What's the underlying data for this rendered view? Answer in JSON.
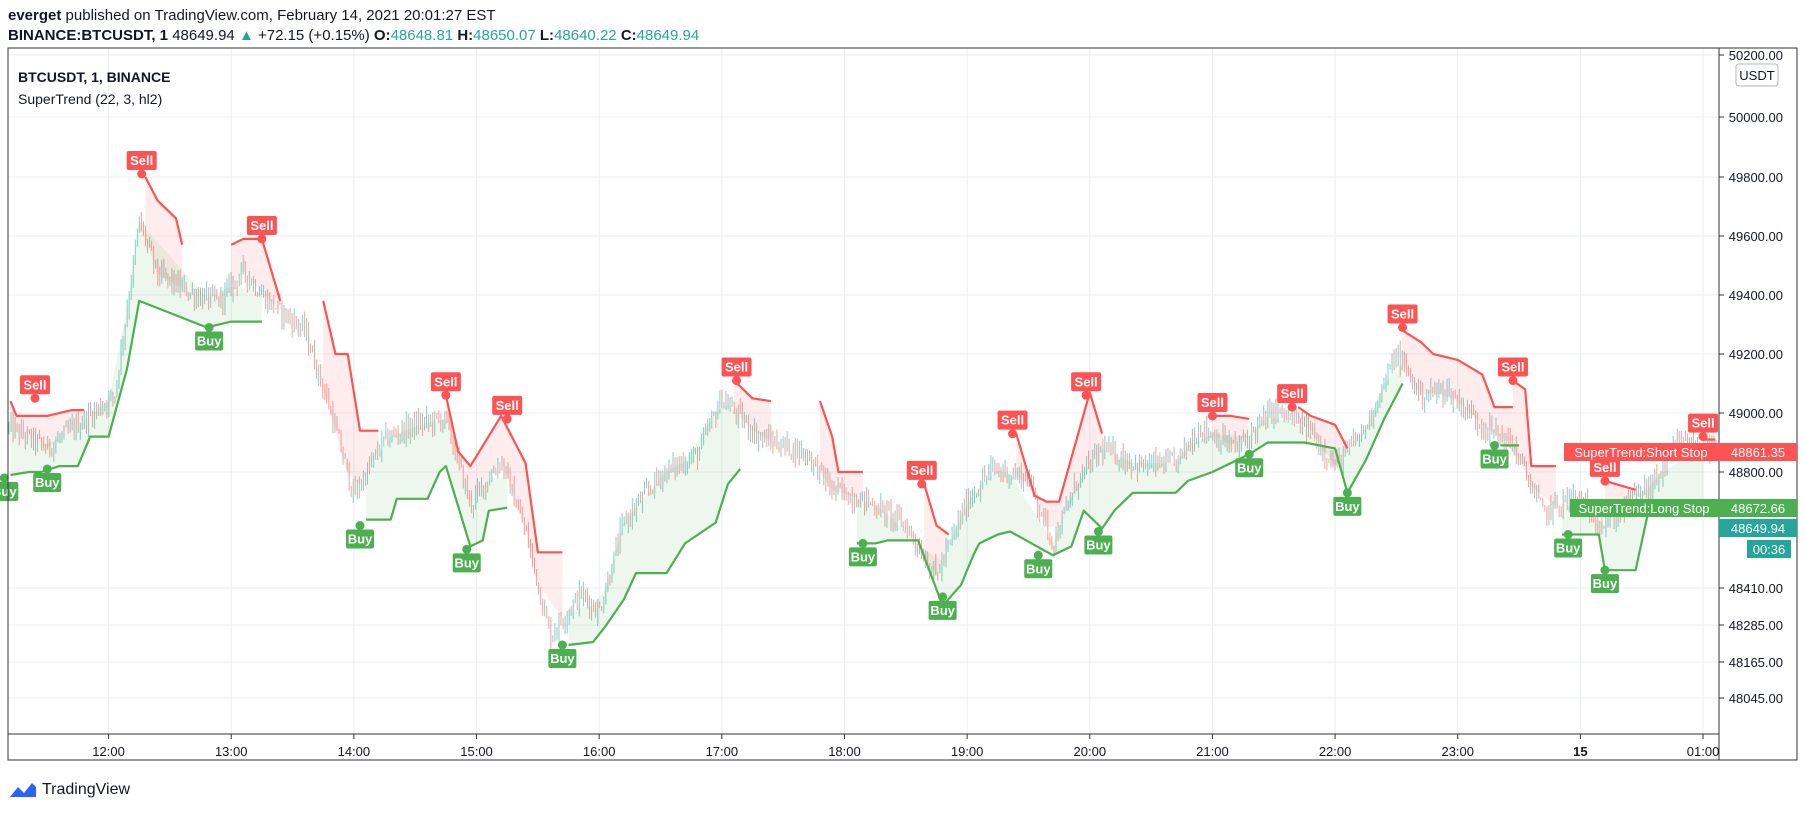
{
  "header": {
    "user": "everget",
    "published_text": "published on TradingView.com, February 14, 2021 20:01:27 EST",
    "symbol": "BINANCE:BTCUSDT, 1",
    "last": "48649.94",
    "change_arrow": "▲",
    "change": "+72.15 (+0.15%)",
    "o_label": "O:",
    "o": "48648.81",
    "h_label": "H:",
    "h": "48650.07",
    "l_label": "L:",
    "l": "48640.22",
    "c_label": "C:",
    "c": "48649.94"
  },
  "pane": {
    "title": "BTCUSDT, 1, BINANCE",
    "indicator": "SuperTrend (22, 3, hl2)",
    "currency_badge": "USDT"
  },
  "price_badges": {
    "short_stop_label": "SuperTrend:Short Stop",
    "short_stop_value": "48861.35",
    "long_stop_label": "SuperTrend:Long Stop",
    "long_stop_value": "48672.66",
    "last_value": "48649.94",
    "countdown": "00:36"
  },
  "footer": {
    "brand": "TradingView"
  },
  "colors": {
    "up": "#26a69a",
    "down": "#ef5350",
    "long_stop": "#4caf50",
    "short_stop": "#ff5252",
    "long_fill": "rgba(76,175,80,0.10)",
    "short_fill": "rgba(255,82,82,0.10)",
    "grid": "#e9eef3",
    "last_price": "#26a69a"
  },
  "chart_data": {
    "type": "line",
    "title": "BTCUSDT, 1, BINANCE",
    "x_ticks": [
      "12:00",
      "13:00",
      "14:00",
      "15:00",
      "16:00",
      "17:00",
      "18:00",
      "19:00",
      "20:00",
      "21:00",
      "22:00",
      "23:00",
      "15",
      "01:00"
    ],
    "y_ticks": [
      "50200.00",
      "50000.00",
      "49800.00",
      "49600.00",
      "49400.00",
      "49200.00",
      "49000.00",
      "48800.00",
      "48410.00",
      "48285.00",
      "48165.00",
      "48045.00"
    ],
    "x_range": [
      "11:12",
      "01:02"
    ],
    "y_range_approx": [
      47920,
      50210
    ],
    "grid": true,
    "series": [
      {
        "name": "SuperTrend:Short Stop",
        "kind": "short_stop",
        "points": [
          [
            11.2,
            49040
          ],
          [
            11.25,
            48990
          ],
          [
            11.5,
            48990
          ],
          [
            11.7,
            49010
          ],
          [
            11.8,
            49010
          ],
          [
            12.3,
            49800
          ],
          [
            12.4,
            49720
          ],
          [
            12.55,
            49660
          ],
          [
            12.6,
            49570
          ],
          [
            13.0,
            49570
          ],
          [
            13.1,
            49590
          ],
          [
            13.25,
            49590
          ],
          [
            13.4,
            49380
          ],
          [
            13.75,
            49380
          ],
          [
            13.85,
            49200
          ],
          [
            13.95,
            49200
          ],
          [
            14.05,
            48940
          ],
          [
            14.2,
            48940
          ],
          [
            14.75,
            49060
          ],
          [
            14.85,
            48870
          ],
          [
            14.95,
            48820
          ],
          [
            15.2,
            48990
          ],
          [
            15.4,
            48830
          ],
          [
            15.5,
            48530
          ],
          [
            15.7,
            48530
          ],
          [
            17.1,
            49110
          ],
          [
            17.25,
            49050
          ],
          [
            17.4,
            49040
          ],
          [
            17.8,
            49040
          ],
          [
            17.9,
            48920
          ],
          [
            17.95,
            48800
          ],
          [
            18.15,
            48800
          ],
          [
            18.65,
            48760
          ],
          [
            18.75,
            48620
          ],
          [
            18.85,
            48590
          ],
          [
            19.4,
            48930
          ],
          [
            19.55,
            48720
          ],
          [
            19.65,
            48700
          ],
          [
            19.75,
            48700
          ],
          [
            20.0,
            49070
          ],
          [
            20.1,
            48930
          ],
          [
            21.0,
            48990
          ],
          [
            21.15,
            48990
          ],
          [
            21.3,
            48980
          ],
          [
            21.7,
            49020
          ],
          [
            21.8,
            48990
          ],
          [
            22.0,
            48960
          ],
          [
            22.1,
            48880
          ],
          [
            22.55,
            49280
          ],
          [
            22.7,
            49240
          ],
          [
            22.8,
            49200
          ],
          [
            23.0,
            49180
          ],
          [
            23.2,
            49130
          ],
          [
            23.3,
            49020
          ],
          [
            23.45,
            49020
          ],
          [
            23.45,
            49110
          ],
          [
            23.55,
            49080
          ],
          [
            23.6,
            48820
          ],
          [
            23.8,
            48820
          ],
          [
            24.2,
            48770
          ],
          [
            24.45,
            48740
          ],
          [
            25.0,
            48910
          ],
          [
            25.1,
            48910
          ]
        ]
      },
      {
        "name": "SuperTrend:Long Stop",
        "kind": "long_stop",
        "points": [
          [
            11.2,
            48790
          ],
          [
            11.35,
            48800
          ],
          [
            11.45,
            48800
          ],
          [
            11.6,
            48820
          ],
          [
            11.75,
            48820
          ],
          [
            11.85,
            48920
          ],
          [
            12.0,
            48920
          ],
          [
            12.15,
            49150
          ],
          [
            12.25,
            49380
          ],
          [
            12.8,
            49290
          ],
          [
            13.0,
            49310
          ],
          [
            13.25,
            49310
          ],
          [
            14.1,
            48640
          ],
          [
            14.3,
            48640
          ],
          [
            14.35,
            48710
          ],
          [
            14.6,
            48710
          ],
          [
            14.7,
            48800
          ],
          [
            14.75,
            48820
          ],
          [
            14.95,
            48550
          ],
          [
            15.05,
            48570
          ],
          [
            15.1,
            48670
          ],
          [
            15.25,
            48680
          ],
          [
            15.75,
            48220
          ],
          [
            15.95,
            48230
          ],
          [
            16.05,
            48280
          ],
          [
            16.2,
            48370
          ],
          [
            16.3,
            48460
          ],
          [
            16.55,
            48460
          ],
          [
            16.7,
            48560
          ],
          [
            16.95,
            48630
          ],
          [
            17.05,
            48760
          ],
          [
            17.15,
            48810
          ],
          [
            18.1,
            48560
          ],
          [
            18.25,
            48560
          ],
          [
            18.35,
            48570
          ],
          [
            18.6,
            48570
          ],
          [
            18.8,
            48350
          ],
          [
            18.95,
            48420
          ],
          [
            19.05,
            48520
          ],
          [
            19.1,
            48560
          ],
          [
            19.25,
            48590
          ],
          [
            19.35,
            48600
          ],
          [
            19.7,
            48520
          ],
          [
            19.85,
            48550
          ],
          [
            19.95,
            48670
          ],
          [
            20.1,
            48610
          ],
          [
            20.2,
            48670
          ],
          [
            20.35,
            48730
          ],
          [
            20.7,
            48730
          ],
          [
            20.8,
            48770
          ],
          [
            21.0,
            48800
          ],
          [
            21.3,
            48860
          ],
          [
            21.45,
            48900
          ],
          [
            21.75,
            48900
          ],
          [
            22.0,
            48880
          ],
          [
            22.1,
            48730
          ],
          [
            22.25,
            48840
          ],
          [
            22.4,
            48980
          ],
          [
            22.55,
            49100
          ],
          [
            23.35,
            48890
          ],
          [
            23.5,
            48890
          ],
          [
            23.85,
            48590
          ],
          [
            24.15,
            48590
          ],
          [
            24.2,
            48470
          ],
          [
            24.45,
            48470
          ],
          [
            24.55,
            48660
          ],
          [
            24.65,
            48680
          ],
          [
            25.0,
            48680
          ]
        ]
      }
    ],
    "signals": [
      {
        "type": "Sell",
        "t": 11.4,
        "price": 49050
      },
      {
        "type": "Buy",
        "t": 11.15,
        "price": 48780
      },
      {
        "type": "Buy",
        "t": 11.5,
        "price": 48810
      },
      {
        "type": "Sell",
        "t": 12.27,
        "price": 49810
      },
      {
        "type": "Buy",
        "t": 12.82,
        "price": 49290
      },
      {
        "type": "Sell",
        "t": 13.25,
        "price": 49590
      },
      {
        "type": "Buy",
        "t": 14.05,
        "price": 48620
      },
      {
        "type": "Sell",
        "t": 14.75,
        "price": 49060
      },
      {
        "type": "Buy",
        "t": 14.92,
        "price": 48540
      },
      {
        "type": "Sell",
        "t": 15.25,
        "price": 48980
      },
      {
        "type": "Buy",
        "t": 15.7,
        "price": 48220
      },
      {
        "type": "Sell",
        "t": 17.12,
        "price": 49110
      },
      {
        "type": "Buy",
        "t": 18.15,
        "price": 48560
      },
      {
        "type": "Sell",
        "t": 18.63,
        "price": 48760
      },
      {
        "type": "Buy",
        "t": 18.8,
        "price": 48380
      },
      {
        "type": "Sell",
        "t": 19.37,
        "price": 48930
      },
      {
        "type": "Buy",
        "t": 19.58,
        "price": 48520
      },
      {
        "type": "Sell",
        "t": 19.97,
        "price": 49060
      },
      {
        "type": "Buy",
        "t": 20.07,
        "price": 48600
      },
      {
        "type": "Sell",
        "t": 21.0,
        "price": 48990
      },
      {
        "type": "Buy",
        "t": 21.3,
        "price": 48860
      },
      {
        "type": "Sell",
        "t": 21.65,
        "price": 49020
      },
      {
        "type": "Buy",
        "t": 22.1,
        "price": 48730
      },
      {
        "type": "Sell",
        "t": 22.55,
        "price": 49290
      },
      {
        "type": "Buy",
        "t": 23.3,
        "price": 48890
      },
      {
        "type": "Sell",
        "t": 23.45,
        "price": 49110
      },
      {
        "type": "Buy",
        "t": 23.9,
        "price": 48590
      },
      {
        "type": "Sell",
        "t": 24.2,
        "price": 48770
      },
      {
        "type": "Buy",
        "t": 24.2,
        "price": 48470
      },
      {
        "type": "Sell",
        "t": 25.0,
        "price": 48920
      }
    ],
    "price_path": [
      [
        11.2,
        48950
      ],
      [
        11.5,
        48880
      ],
      [
        11.75,
        48960
      ],
      [
        12.05,
        49060
      ],
      [
        12.25,
        49650
      ],
      [
        12.4,
        49470
      ],
      [
        12.7,
        49400
      ],
      [
        12.9,
        49380
      ],
      [
        13.1,
        49480
      ],
      [
        13.3,
        49380
      ],
      [
        13.6,
        49280
      ],
      [
        13.8,
        49020
      ],
      [
        14.0,
        48720
      ],
      [
        14.25,
        48910
      ],
      [
        14.5,
        48960
      ],
      [
        14.75,
        48980
      ],
      [
        14.95,
        48690
      ],
      [
        15.2,
        48840
      ],
      [
        15.4,
        48600
      ],
      [
        15.6,
        48250
      ],
      [
        15.85,
        48390
      ],
      [
        16.0,
        48330
      ],
      [
        16.2,
        48630
      ],
      [
        16.5,
        48790
      ],
      [
        16.8,
        48860
      ],
      [
        17.0,
        49050
      ],
      [
        17.3,
        48920
      ],
      [
        17.7,
        48860
      ],
      [
        17.9,
        48740
      ],
      [
        18.2,
        48700
      ],
      [
        18.5,
        48620
      ],
      [
        18.75,
        48450
      ],
      [
        19.0,
        48700
      ],
      [
        19.2,
        48810
      ],
      [
        19.5,
        48780
      ],
      [
        19.7,
        48560
      ],
      [
        19.9,
        48770
      ],
      [
        20.1,
        48880
      ],
      [
        20.4,
        48820
      ],
      [
        20.7,
        48830
      ],
      [
        20.9,
        48950
      ],
      [
        21.2,
        48880
      ],
      [
        21.5,
        49010
      ],
      [
        21.8,
        48940
      ],
      [
        22.0,
        48820
      ],
      [
        22.25,
        48950
      ],
      [
        22.5,
        49200
      ],
      [
        22.7,
        49060
      ],
      [
        22.9,
        49080
      ],
      [
        23.2,
        48960
      ],
      [
        23.45,
        48890
      ],
      [
        23.7,
        48660
      ],
      [
        23.95,
        48720
      ],
      [
        24.2,
        48620
      ],
      [
        24.45,
        48720
      ],
      [
        24.6,
        48760
      ],
      [
        24.8,
        48900
      ],
      [
        25.0,
        48880
      ],
      [
        25.1,
        48870
      ]
    ]
  }
}
